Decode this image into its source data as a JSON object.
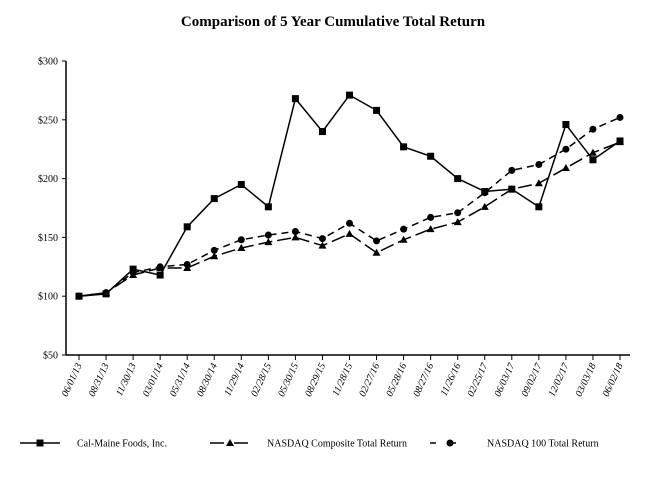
{
  "chart_data": {
    "type": "line",
    "title": "Comparison of 5 Year Cumulative Total Return",
    "xlabel": "",
    "ylabel": "",
    "ylim": [
      50,
      300
    ],
    "yticks": [
      "$50",
      "$100",
      "$150",
      "$200",
      "$250",
      "$300"
    ],
    "ytick_values": [
      50,
      100,
      150,
      200,
      250,
      300
    ],
    "grid": false,
    "legend_position": "bottom",
    "categories": [
      "06/01/13",
      "08/31/13",
      "11/30/13",
      "03/01/14",
      "05/31/14",
      "08/30/14",
      "11/29/14",
      "02/28/15",
      "05/30/15",
      "08/29/15",
      "11/28/15",
      "02/27/16",
      "05/28/16",
      "08/27/16",
      "11/26/16",
      "02/25/17",
      "06/03/17",
      "09/02/17",
      "12/02/17",
      "03/03/18",
      "06/02/18"
    ],
    "series": [
      {
        "name": "Cal-Maine Foods, Inc.",
        "marker": "square",
        "dash": "solid",
        "values": [
          100,
          102,
          123,
          118,
          159,
          183,
          195,
          176,
          268,
          240,
          271,
          258,
          227,
          219,
          200,
          189,
          191,
          176,
          246,
          216,
          232
        ]
      },
      {
        "name": "NASDAQ Composite Total Return",
        "marker": "triangle",
        "dash": "long-dash",
        "values": [
          100,
          103,
          118,
          124,
          124,
          134,
          141,
          146,
          150,
          143,
          153,
          137,
          148,
          157,
          163,
          176,
          191,
          196,
          209,
          222,
          231
        ]
      },
      {
        "name": "NASDAQ 100 Total Return",
        "marker": "circle",
        "dash": "short-dash",
        "values": [
          100,
          103,
          120,
          125,
          127,
          139,
          148,
          152,
          155,
          149,
          162,
          147,
          157,
          167,
          171,
          188,
          207,
          212,
          225,
          242,
          252
        ]
      }
    ]
  }
}
